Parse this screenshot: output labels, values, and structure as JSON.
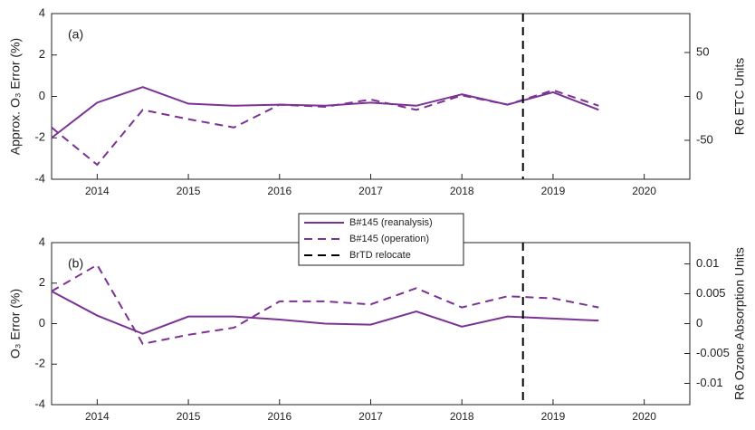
{
  "chart_data": [
    {
      "type": "line",
      "panel_label": "(a)",
      "ylabel": "Approx. O₃ Error (%)",
      "y2label": "R6 ETC Units",
      "x": [
        2013.5,
        2014,
        2014.5,
        2015,
        2015.5,
        2016,
        2016.5,
        2017,
        2017.5,
        2018,
        2018.5,
        2019,
        2019.5
      ],
      "xlim": [
        2013.5,
        2020.5
      ],
      "xticks": [
        2014,
        2015,
        2016,
        2017,
        2018,
        2019,
        2020
      ],
      "ylim": [
        -4,
        4
      ],
      "yticks": [
        -4,
        -2,
        0,
        2,
        4
      ],
      "y2lim": [
        -94.3,
        94.3
      ],
      "y2ticks": [
        -50,
        0,
        50
      ],
      "series": [
        {
          "name": "B#145 (reanalysis)",
          "color": "#7b3294",
          "dash": "solid",
          "values": [
            -2.0,
            -0.3,
            0.45,
            -0.35,
            -0.45,
            -0.4,
            -0.45,
            -0.3,
            -0.45,
            0.1,
            -0.4,
            0.2,
            -0.65
          ]
        },
        {
          "name": "B#145 (operation)",
          "color": "#7b3294",
          "dash": "dashed",
          "values": [
            -1.5,
            -3.3,
            -0.65,
            -1.1,
            -1.5,
            -0.4,
            -0.5,
            -0.15,
            -0.65,
            0.05,
            -0.4,
            0.3,
            -0.45
          ]
        }
      ],
      "vline": {
        "x": 2018.67,
        "label": "BrTD relocate",
        "color": "#000000"
      }
    },
    {
      "type": "line",
      "panel_label": "(b)",
      "ylabel": "O₃ Error (%)",
      "y2label": "R6 Ozone Absorption Units",
      "x": [
        2013.5,
        2014,
        2014.5,
        2015,
        2015.5,
        2016,
        2016.5,
        2017,
        2017.5,
        2018,
        2018.5,
        2019,
        2019.5
      ],
      "xlim": [
        2013.5,
        2020.5
      ],
      "xticks": [
        2014,
        2015,
        2016,
        2017,
        2018,
        2019,
        2020
      ],
      "ylim": [
        -4,
        4
      ],
      "yticks": [
        -4,
        -2,
        0,
        2,
        4
      ],
      "y2lim": [
        -0.01356,
        0.01356
      ],
      "y2ticks": [
        -0.01,
        -0.005,
        0,
        0.005,
        0.01
      ],
      "series": [
        {
          "color": "#7b3294",
          "dash": "solid",
          "values": [
            1.6,
            0.4,
            -0.5,
            0.35,
            0.35,
            0.2,
            0.0,
            -0.05,
            0.6,
            -0.15,
            0.35,
            0.25,
            0.15
          ]
        },
        {
          "color": "#7b3294",
          "dash": "dashed",
          "values": [
            1.6,
            2.9,
            -1.0,
            -0.55,
            -0.2,
            1.1,
            1.1,
            0.95,
            1.75,
            0.8,
            1.35,
            1.25,
            0.8
          ]
        }
      ],
      "vline": {
        "x": 2018.67,
        "color": "#000000"
      }
    }
  ]
}
